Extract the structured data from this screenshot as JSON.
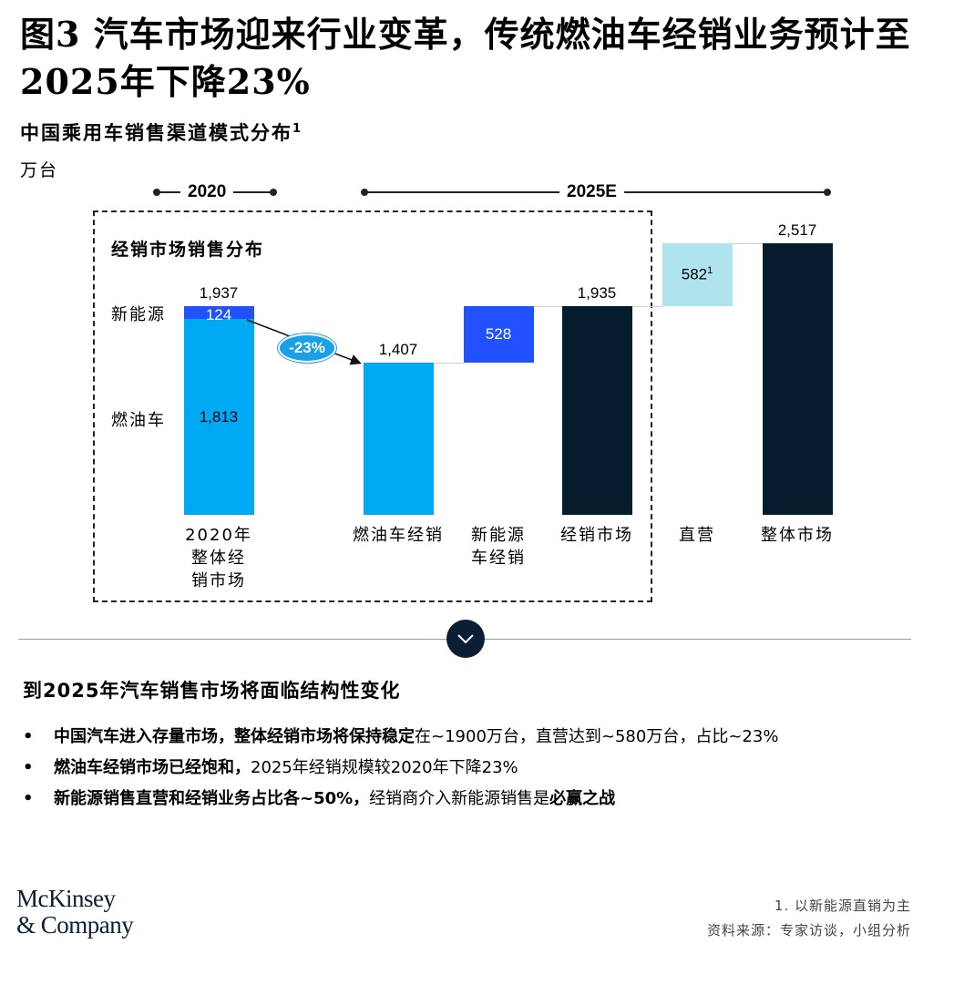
{
  "header": {
    "title": "图3 汽车市场迎来行业变革，传统燃油车经销业务预计至2025年下降23%",
    "subtitle": "中国乘用车销售渠道模式分布",
    "subtitle_footnote_mark": "1",
    "unit": "万台"
  },
  "periods": {
    "left": "2020",
    "right": "2025E"
  },
  "box_title": "经销市场销售分布",
  "side_labels": {
    "nev": "新能源",
    "ice": "燃油车"
  },
  "change_badge": "-23%",
  "chart_data": {
    "type": "bar",
    "subtype": "waterfall",
    "categories": [
      "2020年整体经销市场",
      "燃油车经销",
      "新能源车经销",
      "经销市场",
      "直营",
      "整体市场"
    ],
    "category_lines": [
      [
        "2020年",
        "整体经",
        "销市场"
      ],
      [
        "燃油车经销"
      ],
      [
        "新能源",
        "车经销"
      ],
      [
        "经销市场"
      ],
      [
        "直营"
      ],
      [
        "整体市场"
      ]
    ],
    "bars": [
      {
        "category": "2020年整体经销市场",
        "segments": [
          {
            "name": "燃油车",
            "value": 1813,
            "label": "1,813"
          },
          {
            "name": "新能源",
            "value": 124,
            "label": "124"
          }
        ],
        "total": 1937,
        "total_label": "1,937"
      },
      {
        "category": "燃油车经销",
        "base": 0,
        "value": 1407,
        "label": "1,407"
      },
      {
        "category": "新能源车经销",
        "base": 1407,
        "value": 528,
        "label": "528"
      },
      {
        "category": "经销市场",
        "base": 0,
        "value": 1935,
        "label": "1,935"
      },
      {
        "category": "直营",
        "base": 1935,
        "value": 582,
        "label": "582",
        "footnote_mark": "1"
      },
      {
        "category": "整体市场",
        "base": 0,
        "value": 2517,
        "label": "2,517"
      }
    ],
    "colors": {
      "ice": "#00a9f4",
      "nev": "#2251ff",
      "total": "#051c2c",
      "direct": "#afe4ef"
    },
    "ylim": [
      0,
      2517
    ],
    "grid": false
  },
  "takeaway": {
    "heading": "到2025年汽车销售市场将面临结构性变化",
    "bullets": [
      {
        "bold": "中国汽车进入存量市场，整体经销市场将保持稳定",
        "rest": "在~1900万台，直营达到~580万台，占比~23%",
        "bold2": "",
        "rest2": ""
      },
      {
        "bold": "燃油车经销市场已经饱和，",
        "rest": "2025年经销规模较2020年下降23%",
        "bold2": "",
        "rest2": ""
      },
      {
        "bold": "新能源销售直营和经销业务占比各~50%，",
        "rest": "经销商介入新能源销售是",
        "bold2": "必赢之战",
        "rest2": ""
      }
    ]
  },
  "footer": {
    "logo_line1": "McKinsey",
    "logo_line2": "& Company",
    "note": "1. 以新能源直销为主",
    "source": "资料来源：专家访谈，小组分析"
  }
}
